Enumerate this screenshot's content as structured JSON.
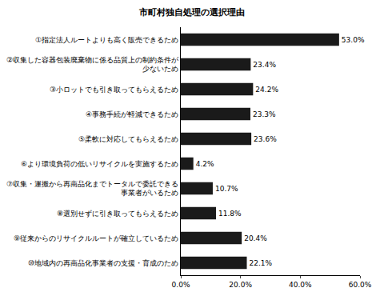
{
  "chart_data": {
    "type": "bar",
    "orientation": "horizontal",
    "title": "市町村独自処理の選択理由",
    "categories": [
      "①指定法人ルートよりも高く販売できるため",
      "②収集した容器包装廃棄物に係る品質上の制約条件が少ないため",
      "③小ロットでも引き取ってもらえるため",
      "④事務手続が軽減できるため",
      "⑤柔軟に対応してもらえるため",
      "⑥より環境負荷の低いリサイクルを実施するため",
      "⑦収集・運搬から再商品化までトータルで委託できる事業者がいるため",
      "⑧選別せずに引き取ってもらえるため",
      "⑨従来からのリサイクルルートが確立しているため",
      "⑩地域内の再商品化事業者の支援・育成のため"
    ],
    "values": [
      53.0,
      23.4,
      24.2,
      23.3,
      23.6,
      4.2,
      10.7,
      11.8,
      20.4,
      22.1
    ],
    "value_labels": [
      "53.0%",
      "23.4%",
      "24.2%",
      "23.3%",
      "23.6%",
      "4.2%",
      "10.7%",
      "11.8%",
      "20.4%",
      "22.1%"
    ],
    "data_labels": true,
    "color": "#1a1a1a",
    "xlim": [
      0,
      60
    ],
    "xticks": [
      {
        "value": 0,
        "label": "0.0%"
      },
      {
        "value": 20,
        "label": "20.0%"
      },
      {
        "value": 40,
        "label": "40.0%"
      },
      {
        "value": 60,
        "label": "60.0%"
      }
    ],
    "grid": false
  }
}
